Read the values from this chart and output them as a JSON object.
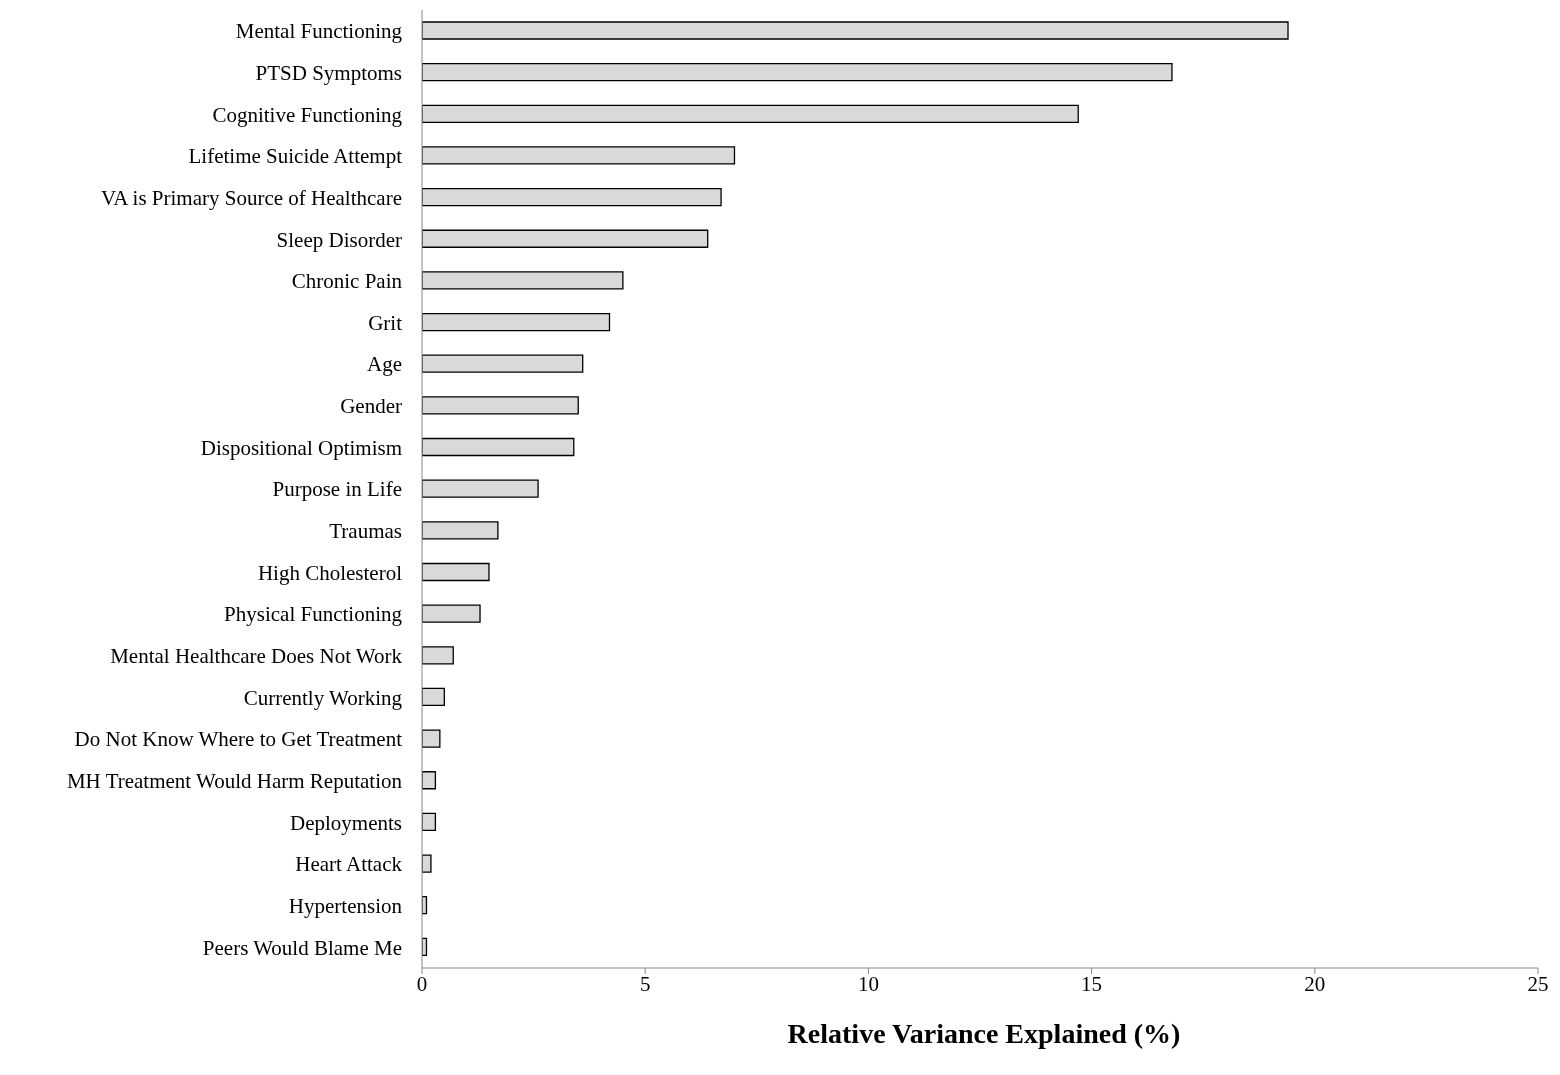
{
  "chart_data": {
    "type": "bar",
    "orientation": "horizontal",
    "xlabel": "Relative Variance Explained (%)",
    "categories": [
      "Mental Functioning",
      "PTSD Symptoms",
      "Cognitive Functioning",
      "Lifetime Suicide Attempt",
      "VA is Primary Source of Healthcare",
      "Sleep Disorder",
      "Chronic Pain",
      "Grit",
      "Age",
      "Gender",
      "Dispositional Optimism",
      "Purpose in Life",
      "Traumas",
      "High Cholesterol",
      "Physical Functioning",
      "Mental Healthcare Does Not Work",
      "Currently Working",
      "Do Not Know Where to Get Treatment",
      "MH Treatment Would Harm Reputation",
      "Deployments",
      "Heart Attack",
      "Hypertension",
      "Peers Would Blame Me"
    ],
    "values": [
      19.4,
      16.8,
      14.7,
      7.0,
      6.7,
      6.4,
      4.5,
      4.2,
      3.6,
      3.5,
      3.4,
      2.6,
      1.7,
      1.5,
      1.3,
      0.7,
      0.5,
      0.4,
      0.3,
      0.3,
      0.2,
      0.1,
      0.1
    ],
    "color": "#d9d9d9",
    "xlim": [
      0,
      25
    ],
    "xticks": [
      0,
      5,
      10,
      15,
      20,
      25
    ],
    "grid": false
  }
}
